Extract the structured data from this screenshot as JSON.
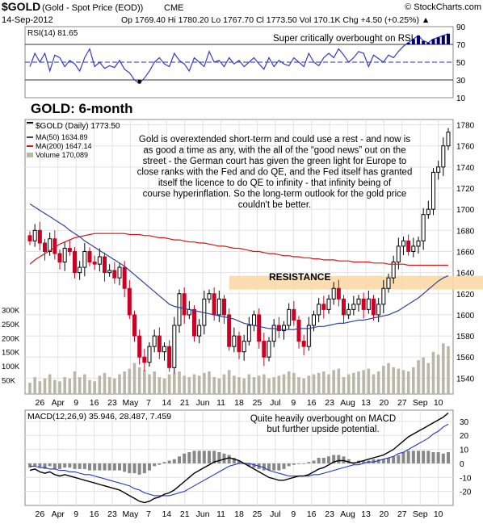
{
  "header": {
    "symbol": "$GOLD",
    "name": "(Gold - Spot Price (EOD))",
    "exchange": "CME",
    "credit": "© StockCharts.com",
    "date": "14-Sep-2012",
    "quote": "Op 1769.40   Hi 1780.20   Lo 1767.70   Cl 1773.50   Vol 170.1K   Chg +4.50 (+0.25%) ▲"
  },
  "colors": {
    "up": "#000000",
    "down": "#cc0022",
    "ma50": "#3040a0",
    "ma200": "#dd1111",
    "rsi": "#3a3ac8",
    "macd": "#000000",
    "signal": "#2233cc",
    "histogram": "#888888",
    "annotation": "#1a8a1a",
    "title": "#2233bb",
    "resistance": "#fbd9a6",
    "volume_bar": "#b8b8a8"
  },
  "chart_data": [
    {
      "type": "line",
      "panel": "RSI",
      "label": "RSI(14) 81.65",
      "ylim": [
        10,
        90
      ],
      "yticks": [
        10,
        30,
        50,
        70,
        90
      ],
      "annotation": "Super critically overbought on RSI",
      "series": [
        {
          "name": "RSI(14)",
          "values": [
            45,
            60,
            50,
            60,
            40,
            58,
            55,
            45,
            52,
            48,
            40,
            55,
            65,
            45,
            50,
            43,
            46,
            44,
            52,
            42,
            38,
            30,
            26,
            32,
            40,
            50,
            55,
            48,
            45,
            60,
            52,
            48,
            40,
            55,
            50,
            45,
            62,
            50,
            52,
            45,
            55,
            48,
            52,
            45,
            50,
            55,
            48,
            42,
            55,
            45,
            52,
            48,
            46,
            55,
            50,
            45,
            60,
            50,
            46,
            55,
            60,
            55,
            65,
            58,
            50,
            55,
            62,
            60,
            45,
            58,
            54,
            50,
            58,
            55,
            62,
            68,
            72,
            76,
            80,
            74,
            72,
            76,
            78,
            80,
            82
          ]
        }
      ]
    },
    {
      "type": "candlestick",
      "panel": "Price",
      "title": "GOLD: 6-month",
      "legend": [
        "$GOLD (Daily) 1773.50",
        "MA(50) 1634.89",
        "MA(200) 1647.14",
        "Volume 170,089"
      ],
      "ylim": [
        1525,
        1785
      ],
      "yticks": [
        1540,
        1560,
        1580,
        1600,
        1620,
        1640,
        1660,
        1680,
        1700,
        1720,
        1740,
        1760,
        1780
      ],
      "volume_ticks": [
        "50K",
        "100K",
        "150K",
        "200K",
        "250K",
        "300K"
      ],
      "xticks": [
        "26",
        "Apr",
        "9",
        "16",
        "23",
        "May",
        "7",
        "14",
        "21",
        "Jun",
        "11",
        "18",
        "25",
        "Jul",
        "9",
        "16",
        "23",
        "Aug",
        "13",
        "20",
        "27",
        "Sep",
        "10"
      ],
      "resistance_label": "RESISTANCE",
      "resistance_zone": [
        1624,
        1637
      ],
      "annotation": "Gold is overextended short-term and could use a rest - and now is as good a time as any, with the all of the “good news” out on the street - the German court has given the green light for Europe to close ranks with the Fed and do QE, and the Fed itself has granted itself the licence to do QE to infinity - that infinity being of course hyperinflation. So the long-term outlook for the gold price couldn't be better.",
      "close": [
        1670,
        1680,
        1668,
        1660,
        1672,
        1658,
        1650,
        1663,
        1660,
        1640,
        1645,
        1660,
        1650,
        1648,
        1655,
        1640,
        1642,
        1635,
        1645,
        1625,
        1600,
        1580,
        1560,
        1555,
        1570,
        1580,
        1565,
        1570,
        1550,
        1590,
        1620,
        1600,
        1605,
        1580,
        1590,
        1615,
        1620,
        1600,
        1615,
        1600,
        1570,
        1580,
        1565,
        1575,
        1590,
        1600,
        1575,
        1560,
        1575,
        1590,
        1585,
        1590,
        1605,
        1595,
        1575,
        1570,
        1590,
        1600,
        1610,
        1605,
        1615,
        1625,
        1615,
        1600,
        1605,
        1610,
        1615,
        1605,
        1615,
        1600,
        1610,
        1625,
        1635,
        1650,
        1665,
        1670,
        1660,
        1665,
        1670,
        1695,
        1700,
        1735,
        1740,
        1760,
        1773
      ],
      "ma50": [
        1705,
        1702,
        1699,
        1696,
        1693,
        1690,
        1687,
        1684,
        1680,
        1677,
        1674,
        1670,
        1667,
        1664,
        1661,
        1658,
        1655,
        1652,
        1649,
        1646,
        1642,
        1638,
        1634,
        1630,
        1626,
        1622,
        1618,
        1614,
        1610,
        1608,
        1607,
        1606,
        1605,
        1604,
        1603,
        1602,
        1601,
        1600,
        1599,
        1598,
        1597,
        1596,
        1594,
        1592,
        1591,
        1590,
        1589,
        1588,
        1587,
        1587,
        1586,
        1586,
        1586,
        1586,
        1587,
        1587,
        1587,
        1588,
        1589,
        1589,
        1590,
        1591,
        1592,
        1592,
        1593,
        1594,
        1595,
        1595,
        1596,
        1597,
        1598,
        1599,
        1600,
        1602,
        1604,
        1607,
        1610,
        1613,
        1616,
        1620,
        1624,
        1628,
        1632,
        1635,
        1637
      ],
      "ma200": [
        1648,
        1652,
        1655,
        1658,
        1661,
        1664,
        1667,
        1669,
        1671,
        1673,
        1674,
        1675,
        1676,
        1677,
        1677,
        1677,
        1677,
        1677,
        1677,
        1677,
        1676,
        1676,
        1676,
        1675,
        1675,
        1674,
        1673,
        1673,
        1672,
        1671,
        1671,
        1670,
        1669,
        1669,
        1668,
        1668,
        1667,
        1666,
        1665,
        1665,
        1664,
        1663,
        1663,
        1662,
        1661,
        1660,
        1660,
        1659,
        1658,
        1658,
        1657,
        1656,
        1656,
        1655,
        1655,
        1654,
        1654,
        1653,
        1653,
        1652,
        1652,
        1652,
        1651,
        1651,
        1651,
        1650,
        1650,
        1650,
        1650,
        1649,
        1649,
        1649,
        1648,
        1648,
        1648,
        1648,
        1647,
        1647,
        1647,
        1647,
        1647,
        1647,
        1647,
        1647,
        1647
      ],
      "volume": [
        40,
        60,
        45,
        55,
        70,
        50,
        45,
        60,
        55,
        80,
        60,
        70,
        50,
        45,
        65,
        75,
        60,
        55,
        70,
        80,
        90,
        110,
        95,
        85,
        70,
        80,
        60,
        55,
        70,
        75,
        80,
        65,
        60,
        70,
        65,
        75,
        80,
        60,
        55,
        70,
        85,
        65,
        60,
        55,
        70,
        60,
        65,
        70,
        55,
        60,
        65,
        70,
        80,
        75,
        60,
        55,
        65,
        70,
        75,
        80,
        70,
        85,
        90,
        60,
        70,
        75,
        80,
        85,
        90,
        70,
        80,
        100,
        110,
        95,
        90,
        85,
        80,
        95,
        120,
        130,
        110,
        150,
        140,
        180,
        170
      ]
    },
    {
      "type": "line",
      "panel": "MACD",
      "label": "MACD(12,26,9) 35.946, 28.487, 7.459",
      "ylim": [
        -30,
        38
      ],
      "yticks": [
        -20,
        -10,
        0,
        10,
        20,
        30
      ],
      "annotation": "Quite heavily overbought on MACD but further upside potential.",
      "series": [
        {
          "name": "MACD",
          "values": [
            -5,
            -4,
            -6,
            -7,
            -6,
            -8,
            -9,
            -8,
            -9,
            -10,
            -11,
            -12,
            -13,
            -14,
            -15,
            -16,
            -17,
            -18,
            -19,
            -21,
            -23,
            -25,
            -27,
            -28,
            -27,
            -25,
            -24,
            -22,
            -21,
            -19,
            -16,
            -13,
            -10,
            -7,
            -5,
            -3,
            -1,
            1,
            2,
            3,
            4,
            3,
            2,
            0,
            -2,
            -4,
            -6,
            -8,
            -10,
            -11,
            -12,
            -12,
            -11,
            -10,
            -9,
            -9,
            -8,
            -6,
            -4,
            -3,
            -1,
            1,
            2,
            2,
            1,
            0,
            1,
            2,
            3,
            4,
            5,
            6,
            8,
            10,
            13,
            16,
            19,
            21,
            23,
            25,
            27,
            29,
            31,
            33,
            36
          ]
        },
        {
          "name": "Signal",
          "values": [
            -2,
            -2,
            -3,
            -3,
            -4,
            -4,
            -5,
            -5,
            -6,
            -6,
            -7,
            -8,
            -8,
            -9,
            -10,
            -11,
            -12,
            -13,
            -14,
            -15,
            -16,
            -18,
            -19,
            -21,
            -22,
            -23,
            -23,
            -23,
            -23,
            -22,
            -21,
            -20,
            -18,
            -16,
            -14,
            -12,
            -10,
            -8,
            -6,
            -4,
            -2,
            -1,
            0,
            0,
            0,
            -1,
            -2,
            -3,
            -5,
            -6,
            -7,
            -8,
            -9,
            -9,
            -9,
            -9,
            -9,
            -8,
            -8,
            -7,
            -6,
            -5,
            -4,
            -3,
            -2,
            -1,
            -1,
            0,
            1,
            1,
            2,
            3,
            4,
            5,
            7,
            8,
            10,
            12,
            14,
            16,
            18,
            21,
            23,
            26,
            28
          ]
        }
      ]
    }
  ]
}
